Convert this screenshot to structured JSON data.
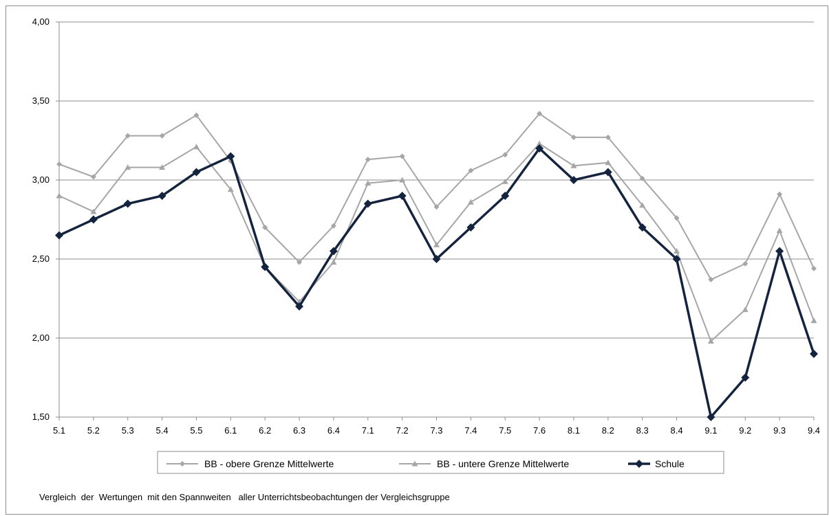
{
  "chart_data": {
    "type": "line",
    "categories": [
      "5.1",
      "5.2",
      "5.3",
      "5.4",
      "5.5",
      "6.1",
      "6.2",
      "6.3",
      "6.4",
      "7.1",
      "7.2",
      "7.3",
      "7.4",
      "7.5",
      "7.6",
      "8.1",
      "8.2",
      "8.3",
      "8.4",
      "9.1",
      "9.2",
      "9.3",
      "9.4"
    ],
    "ylim": [
      1.5,
      4.0
    ],
    "yticks": [
      "1,50",
      "2,00",
      "2,50",
      "3,00",
      "3,50",
      "4,00"
    ],
    "ytick_values": [
      1.5,
      2.0,
      2.5,
      3.0,
      3.5,
      4.0
    ],
    "grid": true,
    "legend_position": "bottom",
    "series": [
      {
        "name": "BB - obere Grenze  Mittelwerte",
        "color": "#a6a6a6",
        "marker": "diamond",
        "values": [
          3.1,
          3.02,
          3.28,
          3.28,
          3.41,
          3.12,
          2.7,
          2.48,
          2.71,
          3.13,
          3.15,
          2.83,
          3.06,
          3.16,
          3.42,
          3.27,
          3.27,
          3.01,
          2.76,
          2.37,
          2.47,
          2.91,
          2.44
        ]
      },
      {
        "name": "BB - untere Grenze  Mittelwerte",
        "color": "#a6a6a6",
        "marker": "triangle",
        "values": [
          2.9,
          2.8,
          3.08,
          3.08,
          3.21,
          2.94,
          2.45,
          2.23,
          2.48,
          2.98,
          3.0,
          2.59,
          2.86,
          2.99,
          3.23,
          3.09,
          3.11,
          2.84,
          2.55,
          1.98,
          2.18,
          2.68,
          2.11
        ]
      },
      {
        "name": "Schule",
        "color": "#14243f",
        "marker": "diamond-bold",
        "values": [
          2.65,
          2.75,
          2.85,
          2.9,
          3.05,
          3.15,
          2.45,
          2.2,
          2.55,
          2.85,
          2.9,
          2.5,
          2.7,
          2.9,
          3.2,
          3.0,
          3.05,
          2.7,
          2.5,
          1.5,
          1.75,
          2.55,
          1.9
        ]
      }
    ]
  },
  "caption": "Vergleich  der  Wertungen  mit den Spannweiten   aller Unterrichtsbeobachtungen der Vergleichsgruppe"
}
